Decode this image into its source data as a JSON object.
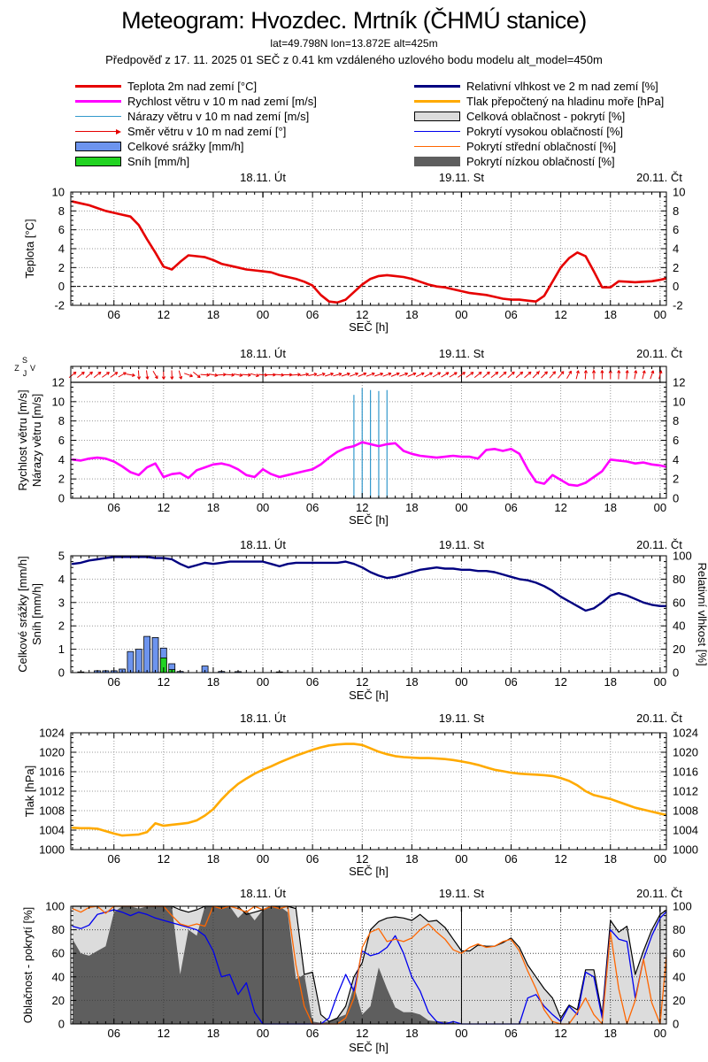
{
  "header": {
    "title": "Meteogram: Hvozdec. Mrtník (ČHMÚ stanice)",
    "subtitle1": "lat=49.798N lon=13.872E alt=425m",
    "subtitle2": "Předpověď z 17. 11. 2025 01 SEČ z 0.41 km vzdáleného uzlového bodu modelu alt_model=450m"
  },
  "legend": {
    "left": [
      {
        "type": "line",
        "color": "#e60000",
        "thickness": 3,
        "label": "Teplota 2m nad zemí [°C]"
      },
      {
        "type": "line",
        "color": "#ff00ff",
        "thickness": 3,
        "label": "Rychlost větru v 10 m nad zemí [m/s]"
      },
      {
        "type": "line",
        "color": "#3399cc",
        "thickness": 1,
        "label": "Nárazy větru v 10 m nad zemí [m/s]"
      },
      {
        "type": "arrow",
        "color": "#e60000",
        "label": "Směr větru v 10 m nad zemí [°]"
      },
      {
        "type": "box",
        "color": "#6d94ee",
        "border": true,
        "label": "Celkové srážky [mm/h]"
      },
      {
        "type": "box",
        "color": "#22d322",
        "border": true,
        "label": "Sníh [mm/h]"
      }
    ],
    "right": [
      {
        "type": "line",
        "color": "#000080",
        "thickness": 3,
        "label": "Relativní vlhkost ve 2 m nad zemí [%]"
      },
      {
        "type": "line",
        "color": "#ffaa00",
        "thickness": 3,
        "label": "Tlak přepočtený na hladinu moře [hPa]"
      },
      {
        "type": "box",
        "color": "#dcdcdc",
        "border": true,
        "label": "Celková oblačnost - pokrytí [%]"
      },
      {
        "type": "line",
        "color": "#0000ee",
        "thickness": 1,
        "label": "Pokrytí vysokou oblačností [%]"
      },
      {
        "type": "line",
        "color": "#ff6600",
        "thickness": 1,
        "label": "Pokrytí střední oblačností [%]"
      },
      {
        "type": "box",
        "color": "#5e5e5e",
        "border": false,
        "label": "Pokrytí nízkou oblačností [%]"
      }
    ]
  },
  "axis": {
    "xlabel": "SEČ [h]",
    "x_start_hour": 1,
    "x_end_hour": 73,
    "x_major": [
      6,
      12,
      18,
      24,
      30,
      36,
      42,
      48,
      54,
      60,
      66,
      72
    ],
    "x_labels": [
      "06",
      "12",
      "18",
      "00",
      "06",
      "12",
      "18",
      "00",
      "06",
      "12",
      "18",
      "00"
    ],
    "day_labels": [
      {
        "h": 24,
        "text": "18.11. Út"
      },
      {
        "h": 48,
        "text": "19.11. St"
      },
      {
        "h": 72,
        "text": "20.11. Čt"
      }
    ]
  },
  "compass": {
    "n": "S",
    "s": "J",
    "e": "V",
    "w": "Z"
  },
  "colors": {
    "temperature": "#e60000",
    "wind_speed": "#ff00ff",
    "wind_gusts": "#3399cc",
    "wind_dir": "#e60000",
    "precip_fill": "#6d94ee",
    "snow_fill": "#22d322",
    "humidity": "#000080",
    "pressure": "#ffaa00",
    "cloud_total_fill": "#dcdcdc",
    "cloud_total_line": "#000000",
    "cloud_high": "#0000ee",
    "cloud_mid": "#ff6600",
    "cloud_low_fill": "#5e5e5e",
    "grid": "#999999",
    "grid_dark": "#444444"
  },
  "chart_data": [
    {
      "id": "temperature",
      "type": "line",
      "ylabel": "Teplota [°C]",
      "ylim": [
        -2,
        10
      ],
      "yticks": [
        -2,
        0,
        2,
        4,
        6,
        8,
        10
      ],
      "zero_line": 0,
      "series": [
        {
          "name": "Teplota 2m nad zemí [°C]",
          "values": [
            9.0,
            8.8,
            8.6,
            8.3,
            8.0,
            7.8,
            7.6,
            7.4,
            6.5,
            5.0,
            3.6,
            2.1,
            1.8,
            2.6,
            3.3,
            3.2,
            3.1,
            2.8,
            2.4,
            2.2,
            2.0,
            1.8,
            1.7,
            1.6,
            1.5,
            1.2,
            1.0,
            0.8,
            0.5,
            0.1,
            -0.9,
            -1.6,
            -1.7,
            -1.4,
            -0.6,
            0.2,
            0.8,
            1.1,
            1.2,
            1.1,
            1.0,
            0.8,
            0.5,
            0.2,
            0.0,
            -0.1,
            -0.3,
            -0.5,
            -0.7,
            -0.8,
            -0.9,
            -1.1,
            -1.3,
            -1.4,
            -1.4,
            -1.5,
            -1.6,
            -1.0,
            0.5,
            2.0,
            3.0,
            3.6,
            3.2,
            1.6,
            -0.1,
            -0.1,
            0.55,
            0.5,
            0.45,
            0.5,
            0.55,
            0.7,
            0.9
          ]
        }
      ]
    },
    {
      "id": "wind",
      "type": "line+impulses+arrows",
      "ylabels": [
        "Rychlost větru [m/s]",
        "Nárazy větru [m/s]"
      ],
      "ylim": [
        0,
        12
      ],
      "yticks": [
        0,
        2,
        4,
        6,
        8,
        10,
        12
      ],
      "series": [
        {
          "name": "Rychlost větru v 10 m nad zemí [m/s]",
          "values": [
            4.0,
            3.9,
            4.1,
            4.2,
            4.1,
            3.8,
            3.3,
            2.7,
            2.4,
            3.2,
            3.6,
            2.2,
            2.5,
            2.6,
            2.1,
            2.9,
            3.2,
            3.5,
            3.6,
            3.4,
            3.0,
            2.4,
            2.2,
            3.0,
            2.5,
            2.2,
            2.4,
            2.6,
            2.8,
            3.0,
            3.5,
            4.2,
            4.8,
            5.2,
            5.4,
            5.8,
            5.6,
            5.4,
            5.6,
            5.7,
            4.9,
            4.6,
            4.4,
            4.3,
            4.2,
            4.3,
            4.4,
            4.3,
            4.3,
            4.1,
            5.0,
            5.1,
            4.9,
            5.1,
            4.6,
            3.0,
            1.7,
            1.5,
            2.4,
            1.9,
            1.4,
            1.3,
            1.6,
            2.2,
            2.8,
            4.0,
            3.9,
            3.8,
            3.6,
            3.7,
            3.5,
            3.4,
            3.2
          ]
        }
      ],
      "gusts": [
        {
          "h": 35,
          "v": 10.7
        },
        {
          "h": 36,
          "v": 11.4
        },
        {
          "h": 37,
          "v": 11.2
        },
        {
          "h": 38,
          "v": 11.1
        },
        {
          "h": 39,
          "v": 11.2
        }
      ],
      "wind_direction_deg": [
        52,
        52,
        50,
        52,
        55,
        55,
        60,
        100,
        175,
        172,
        150,
        178,
        178,
        165,
        110,
        128,
        95,
        100,
        85,
        95,
        100,
        95,
        105,
        95,
        90,
        95,
        90,
        85,
        80,
        78,
        75,
        72,
        75,
        72,
        70,
        68,
        70,
        72,
        70,
        68,
        70,
        68,
        65,
        62,
        60,
        58,
        58,
        55,
        55,
        52,
        50,
        52,
        50,
        48,
        50,
        48,
        45,
        45,
        42,
        40,
        30,
        15,
        5,
        0,
        0,
        0,
        2,
        5,
        10,
        15,
        20,
        15,
        10
      ]
    },
    {
      "id": "precip_humidity",
      "type": "bars+line",
      "ylabels": [
        "Celkové srážky [mm/h]",
        "Sníh [mm/h]"
      ],
      "ylim": [
        0,
        5
      ],
      "yticks": [
        0,
        1,
        2,
        3,
        4,
        5
      ],
      "y2label": "Relativní vlhkost [%]",
      "y2lim": [
        0,
        100
      ],
      "y2ticks": [
        0,
        20,
        40,
        60,
        80,
        100
      ],
      "precip_bars": [
        {
          "h": 2,
          "v": 0.03
        },
        {
          "h": 4,
          "v": 0.08
        },
        {
          "h": 5,
          "v": 0.08
        },
        {
          "h": 6,
          "v": 0.08
        },
        {
          "h": 7,
          "v": 0.15
        },
        {
          "h": 8,
          "v": 0.9
        },
        {
          "h": 9,
          "v": 1.0
        },
        {
          "h": 10,
          "v": 1.55
        },
        {
          "h": 11,
          "v": 1.5
        },
        {
          "h": 12,
          "v": 1.05
        },
        {
          "h": 13,
          "v": 0.38
        },
        {
          "h": 14,
          "v": 0.05
        },
        {
          "h": 17,
          "v": 0.28
        },
        {
          "h": 19,
          "v": 0.05
        },
        {
          "h": 21,
          "v": 0.04
        },
        {
          "h": 26,
          "v": 0.02
        }
      ],
      "snow_bars": [
        {
          "h": 12,
          "v": 0.63
        },
        {
          "h": 13,
          "v": 0.13
        }
      ],
      "humidity": {
        "name": "Relativní vlhkost ve 2 m nad zemí [%]",
        "values": [
          93,
          94,
          96,
          97,
          98,
          99,
          99,
          99,
          99,
          99,
          98,
          98,
          97,
          93,
          90,
          92,
          94,
          93,
          94,
          95,
          95,
          95,
          95,
          95,
          93,
          91,
          93,
          94,
          94,
          94,
          94,
          94,
          94,
          95,
          93,
          90,
          86,
          83,
          81,
          82,
          84,
          86,
          88,
          89,
          90,
          89,
          89,
          88,
          88,
          87,
          87,
          86,
          84,
          82,
          80,
          79,
          77,
          74,
          70,
          65,
          61,
          57,
          53,
          55,
          60,
          66,
          68,
          66,
          63,
          60,
          58,
          57,
          57
        ]
      }
    },
    {
      "id": "pressure",
      "type": "line",
      "ylabel": "Tlak [hPa]",
      "ylim": [
        1000,
        1024
      ],
      "yticks": [
        1000,
        1004,
        1008,
        1012,
        1016,
        1020,
        1024
      ],
      "series": [
        {
          "name": "Tlak přepočtený na hladinu moře [hPa]",
          "values": [
            1004.5,
            1004.4,
            1004.4,
            1004.3,
            1003.8,
            1003.3,
            1002.9,
            1003.0,
            1003.1,
            1003.6,
            1005.4,
            1004.9,
            1005.1,
            1005.3,
            1005.5,
            1006.0,
            1007.0,
            1008.3,
            1010.3,
            1012.0,
            1013.5,
            1014.6,
            1015.6,
            1016.4,
            1017.1,
            1017.9,
            1018.6,
            1019.3,
            1019.9,
            1020.5,
            1021.0,
            1021.4,
            1021.6,
            1021.7,
            1021.7,
            1021.5,
            1020.8,
            1020.1,
            1019.6,
            1019.2,
            1019.0,
            1018.9,
            1018.8,
            1018.8,
            1018.7,
            1018.6,
            1018.4,
            1018.1,
            1017.8,
            1017.4,
            1016.9,
            1016.4,
            1016.1,
            1015.8,
            1015.6,
            1015.5,
            1015.4,
            1015.3,
            1015.1,
            1014.7,
            1014.1,
            1013.2,
            1012.0,
            1011.2,
            1010.8,
            1010.4,
            1009.8,
            1009.2,
            1008.6,
            1008.2,
            1007.8,
            1007.4,
            1007.0
          ]
        }
      ]
    },
    {
      "id": "clouds",
      "type": "area+lines",
      "ylabel": "Oblačnost - pokrytí [%]",
      "ylim": [
        0,
        100
      ],
      "yticks": [
        0,
        20,
        40,
        60,
        80,
        100
      ],
      "total": [
        100,
        100,
        100,
        100,
        100,
        100,
        100,
        100,
        100,
        100,
        100,
        100,
        100,
        97,
        95,
        97,
        100,
        100,
        100,
        100,
        100,
        93,
        95,
        97,
        100,
        100,
        100,
        98,
        42,
        44,
        8,
        2,
        5,
        15,
        40,
        52,
        80,
        87,
        90,
        91,
        90,
        88,
        93,
        87,
        88,
        82,
        72,
        62,
        62,
        67,
        66,
        66,
        69,
        73,
        65,
        50,
        40,
        30,
        22,
        5,
        16,
        12,
        46,
        46,
        8,
        88,
        78,
        83,
        42,
        62,
        80,
        93,
        98
      ],
      "low": [
        72,
        60,
        58,
        62,
        66,
        95,
        100,
        100,
        98,
        100,
        100,
        100,
        100,
        42,
        80,
        75,
        100,
        100,
        100,
        100,
        90,
        97,
        88,
        97,
        100,
        100,
        95,
        38,
        42,
        2,
        1,
        2,
        5,
        8,
        32,
        8,
        15,
        48,
        30,
        14,
        10,
        10,
        8,
        3,
        2,
        2,
        1,
        0,
        0,
        0,
        0,
        0,
        0,
        0,
        0,
        0,
        0,
        0,
        0,
        0,
        0,
        0,
        0,
        0,
        0,
        0,
        0,
        0,
        0,
        0,
        0,
        0,
        0
      ],
      "high": [
        83,
        81,
        84,
        93,
        95,
        97,
        95,
        92,
        95,
        93,
        90,
        88,
        86,
        84,
        82,
        80,
        75,
        62,
        40,
        42,
        25,
        35,
        10,
        0,
        0,
        0,
        0,
        0,
        0,
        0,
        0,
        5,
        25,
        42,
        28,
        62,
        58,
        60,
        65,
        75,
        60,
        40,
        28,
        10,
        2,
        0,
        2,
        0,
        0,
        0,
        0,
        0,
        0,
        0,
        0,
        22,
        25,
        15,
        8,
        2,
        15,
        8,
        44,
        40,
        5,
        80,
        72,
        70,
        22,
        55,
        75,
        90,
        97
      ],
      "mid": [
        98,
        95,
        99,
        100,
        94,
        100,
        100,
        100,
        100,
        100,
        100,
        100,
        92,
        85,
        83,
        85,
        83,
        100,
        98,
        100,
        98,
        95,
        100,
        97,
        100,
        98,
        100,
        50,
        15,
        0,
        0,
        0,
        0,
        5,
        22,
        65,
        78,
        81,
        70,
        72,
        70,
        73,
        80,
        85,
        78,
        72,
        63,
        60,
        65,
        68,
        65,
        66,
        70,
        72,
        62,
        45,
        30,
        12,
        2,
        0,
        0,
        10,
        22,
        8,
        0,
        78,
        30,
        0,
        20,
        55,
        18,
        0,
        75
      ]
    }
  ]
}
